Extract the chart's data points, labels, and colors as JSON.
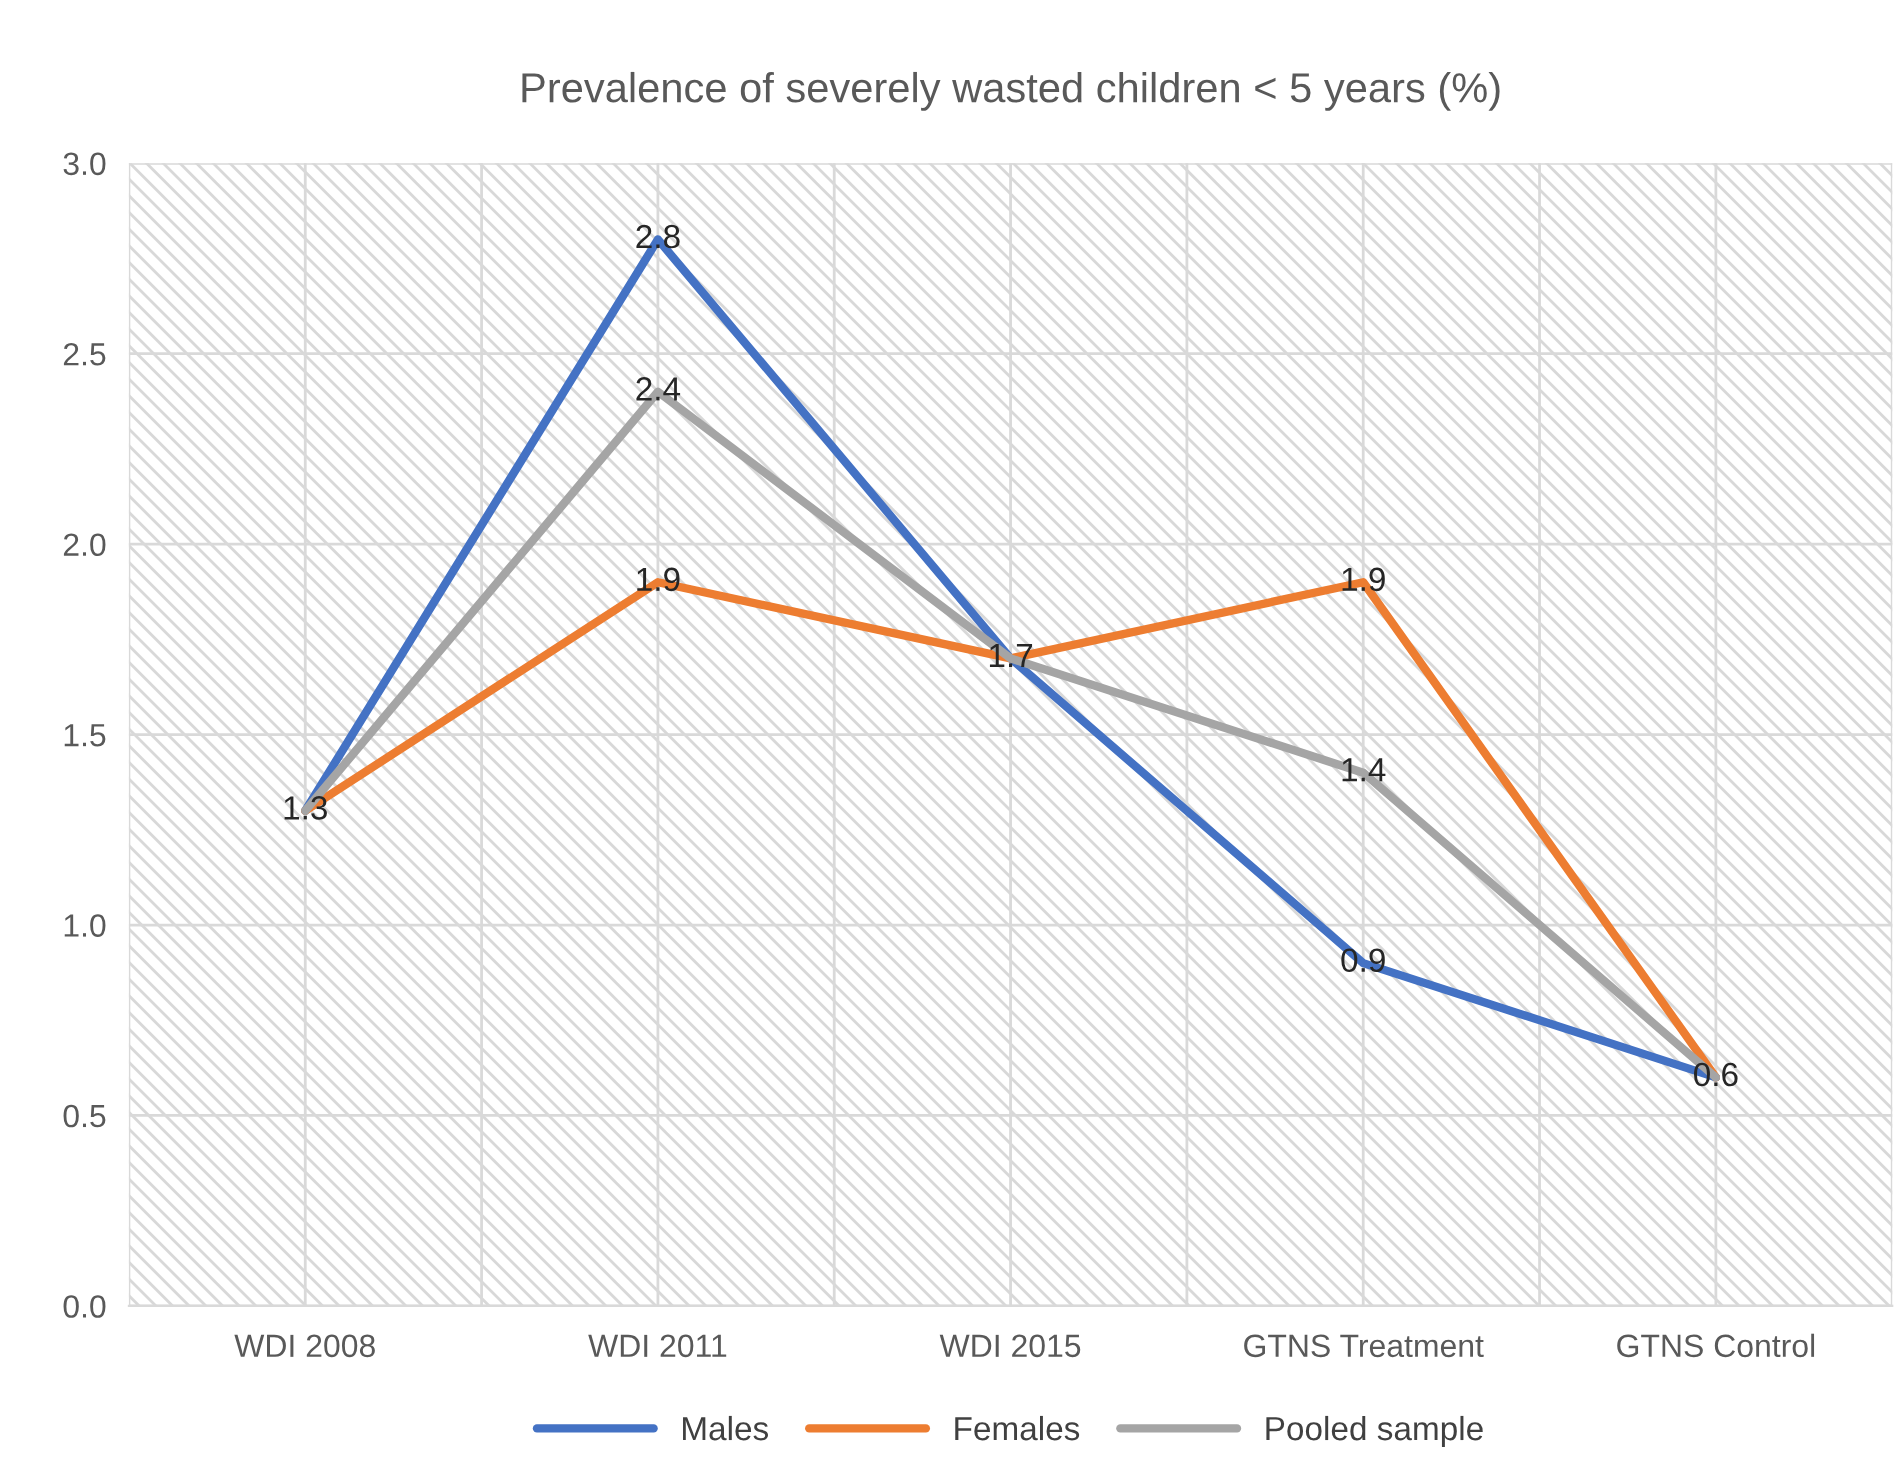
{
  "chart_data": {
    "type": "line",
    "title": "Prevalence of severely wasted children < 5 years (%)",
    "categories": [
      "WDI 2008",
      "WDI 2011",
      "WDI 2015",
      "GTNS Treatment",
      "GTNS Control"
    ],
    "series": [
      {
        "name": "Males",
        "color": "#4472c4",
        "values": [
          1.3,
          2.8,
          1.7,
          0.9,
          0.6
        ],
        "value_labels": [
          "1.3",
          "2.8",
          "1.7",
          "0.9",
          "0.6"
        ]
      },
      {
        "name": "Females",
        "color": "#ed7d31",
        "values": [
          1.3,
          1.9,
          1.7,
          1.9,
          0.6
        ],
        "value_labels": [
          null,
          "1.9",
          null,
          "1.9",
          null
        ]
      },
      {
        "name": "Pooled sample",
        "color": "#a5a5a5",
        "values": [
          1.3,
          2.4,
          1.7,
          1.4,
          0.6
        ],
        "value_labels": [
          null,
          "2.4",
          null,
          "1.4",
          null
        ]
      }
    ],
    "ylim": [
      0,
      3
    ],
    "yticks": [
      {
        "value": 0,
        "label": "0.0"
      },
      {
        "value": 0.5,
        "label": "0.5"
      },
      {
        "value": 1,
        "label": "1.0"
      },
      {
        "value": 1.5,
        "label": "1.5"
      },
      {
        "value": 2,
        "label": "2.0"
      },
      {
        "value": 2.5,
        "label": "2.5"
      },
      {
        "value": 3,
        "label": "3.0"
      }
    ],
    "grid": true,
    "legend": "bottom",
    "marker": "none",
    "line_style": "solid"
  }
}
